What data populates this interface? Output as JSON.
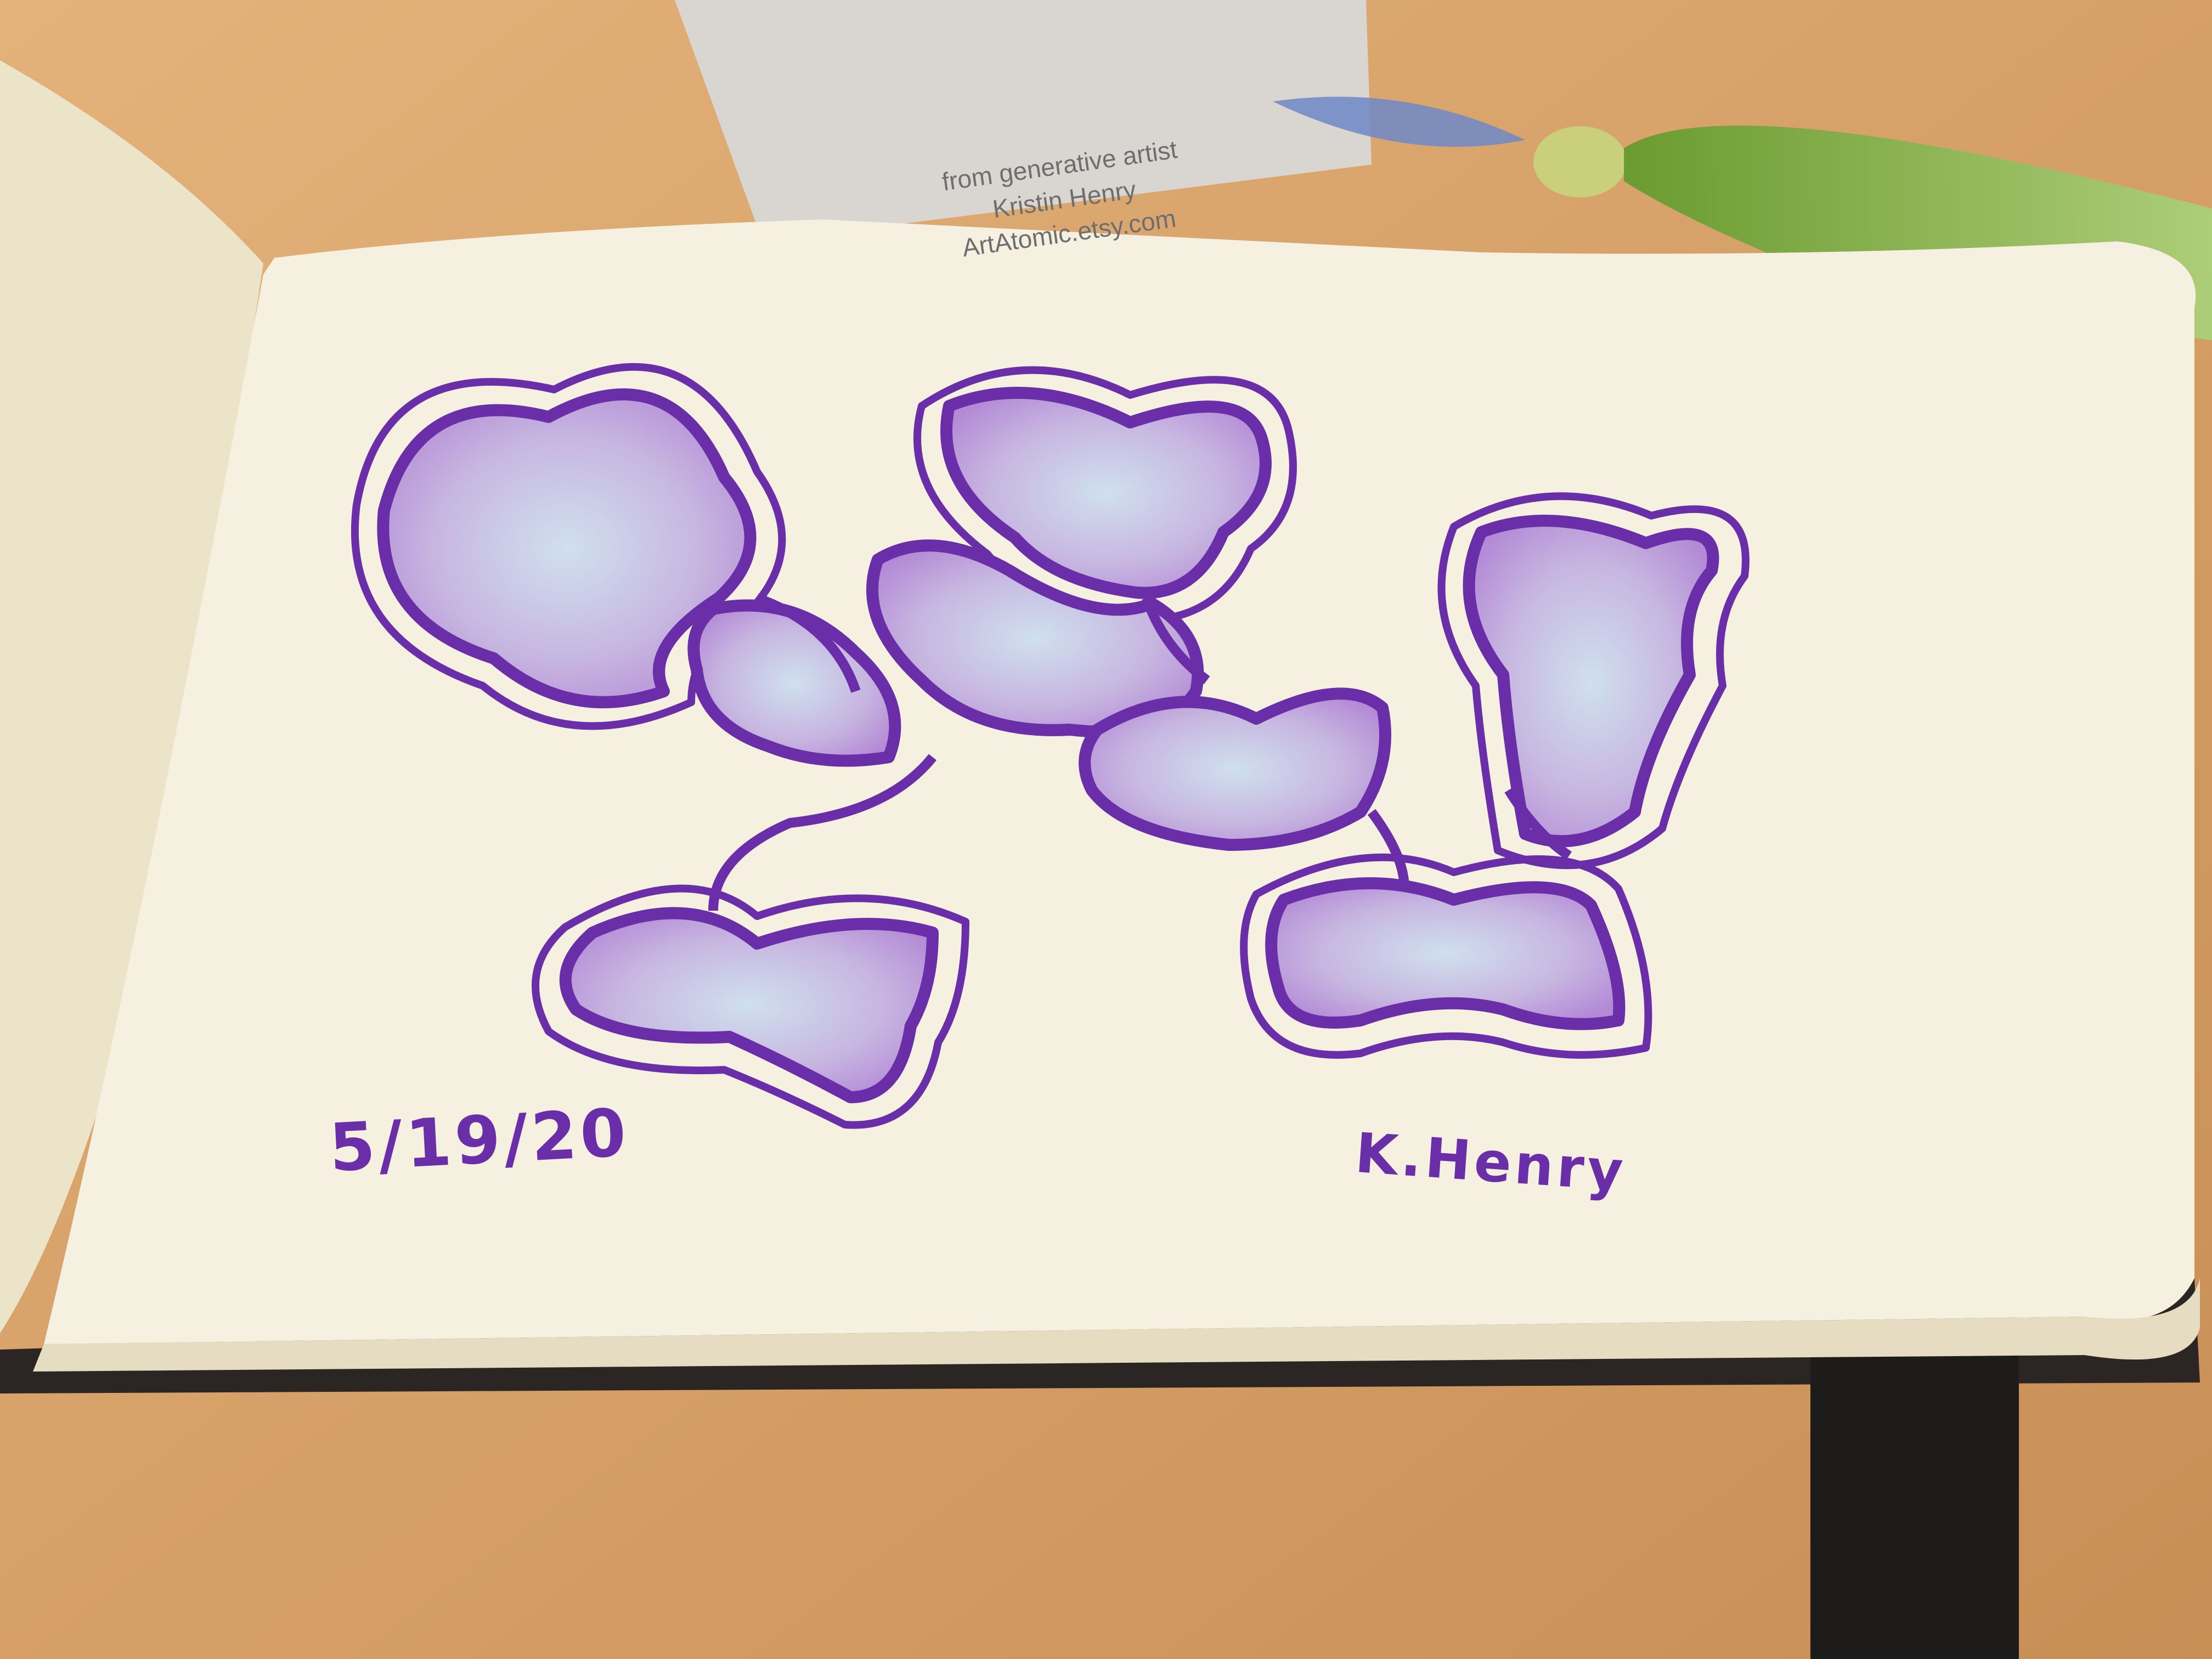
{
  "business_card": {
    "line1": "from generative artist",
    "line2": "Kristin Henry",
    "line3": "ArtAtomic.etsy.com"
  },
  "sketchbook_page": {
    "date": "5/19/20",
    "signature": "K.Henry"
  },
  "colors": {
    "table": "#d8a56a",
    "paper": "#f6f0e0",
    "ink_purple": "#6a2fa8",
    "wash_blue": "#a9c7e0",
    "glass_pen_green": "#7fae3c"
  },
  "icons": [
    "glass-dip-pen-icon",
    "sketchbook-cover-icon",
    "elastic-band-icon"
  ]
}
